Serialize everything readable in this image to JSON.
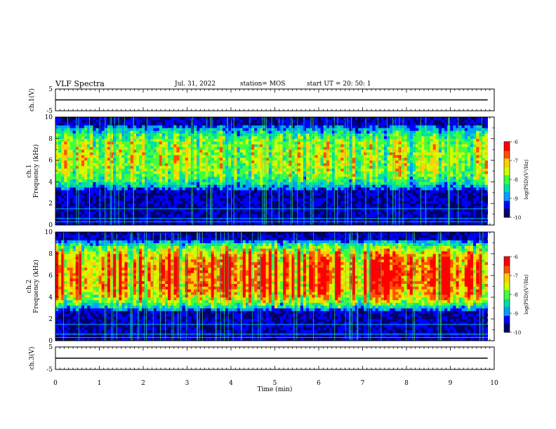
{
  "header": {
    "title": "VLF Spectra",
    "date": "Jul. 31, 2022",
    "station": "station= MOS",
    "start": "start UT =  20: 50: 1"
  },
  "chart_data": [
    {
      "id": "ch1_voltage",
      "type": "line",
      "ylabel": "ch.1(V)",
      "ylim": [
        -5,
        5
      ],
      "yticks": [
        "5",
        "-5"
      ],
      "xlim": [
        0,
        9.85
      ],
      "x": [
        0,
        9.85
      ],
      "values": [
        0,
        0
      ]
    },
    {
      "id": "ch1_spectrogram",
      "type": "heatmap",
      "ylabel": "ch.1\nFrequency (kHz)",
      "ylim": [
        0,
        10
      ],
      "yticks": [
        "0",
        "2",
        "4",
        "6",
        "8",
        "10"
      ],
      "xlim": [
        0,
        9.85
      ],
      "band": {
        "low_khz": 3.3,
        "high_khz": 9.2,
        "level": 0.45
      },
      "colorbar": {
        "label": "log(PSD)(V²/Hz)",
        "range": [
          -10,
          -6
        ],
        "ticks": [
          "-6",
          "-7",
          "-8",
          "-9",
          "-10"
        ]
      }
    },
    {
      "id": "ch2_spectrogram",
      "type": "heatmap",
      "ylabel": "ch.2\nFrequency (kHz)",
      "ylim": [
        0,
        10
      ],
      "yticks": [
        "0",
        "2",
        "4",
        "6",
        "8",
        "10"
      ],
      "xlim": [
        0,
        9.85
      ],
      "band": {
        "low_khz": 2.8,
        "high_khz": 9.3,
        "level": 0.75
      },
      "colorbar": {
        "label": "log(PSD)(V²/Hz)",
        "range": [
          -10,
          -6
        ],
        "ticks": [
          "-6",
          "-7",
          "-8",
          "-9",
          "-10"
        ]
      }
    },
    {
      "id": "ch3_voltage",
      "type": "line",
      "ylabel": "ch.3(V)",
      "ylim": [
        -5,
        5
      ],
      "yticks": [
        "5",
        "-5"
      ],
      "xlim": [
        0,
        9.85
      ],
      "x": [
        0,
        9.85
      ],
      "values": [
        0,
        0
      ]
    }
  ],
  "xaxis": {
    "label": "Time (min)",
    "ticks": [
      "0",
      "1",
      "2",
      "3",
      "4",
      "5",
      "6",
      "7",
      "8",
      "9",
      "10"
    ]
  },
  "colors": {
    "colormap": [
      "#00006a",
      "#0000ff",
      "#00a0ff",
      "#00e0a0",
      "#40ff40",
      "#d0ff00",
      "#ffd000",
      "#ff5000",
      "#ff0000",
      "#ffffff"
    ]
  }
}
